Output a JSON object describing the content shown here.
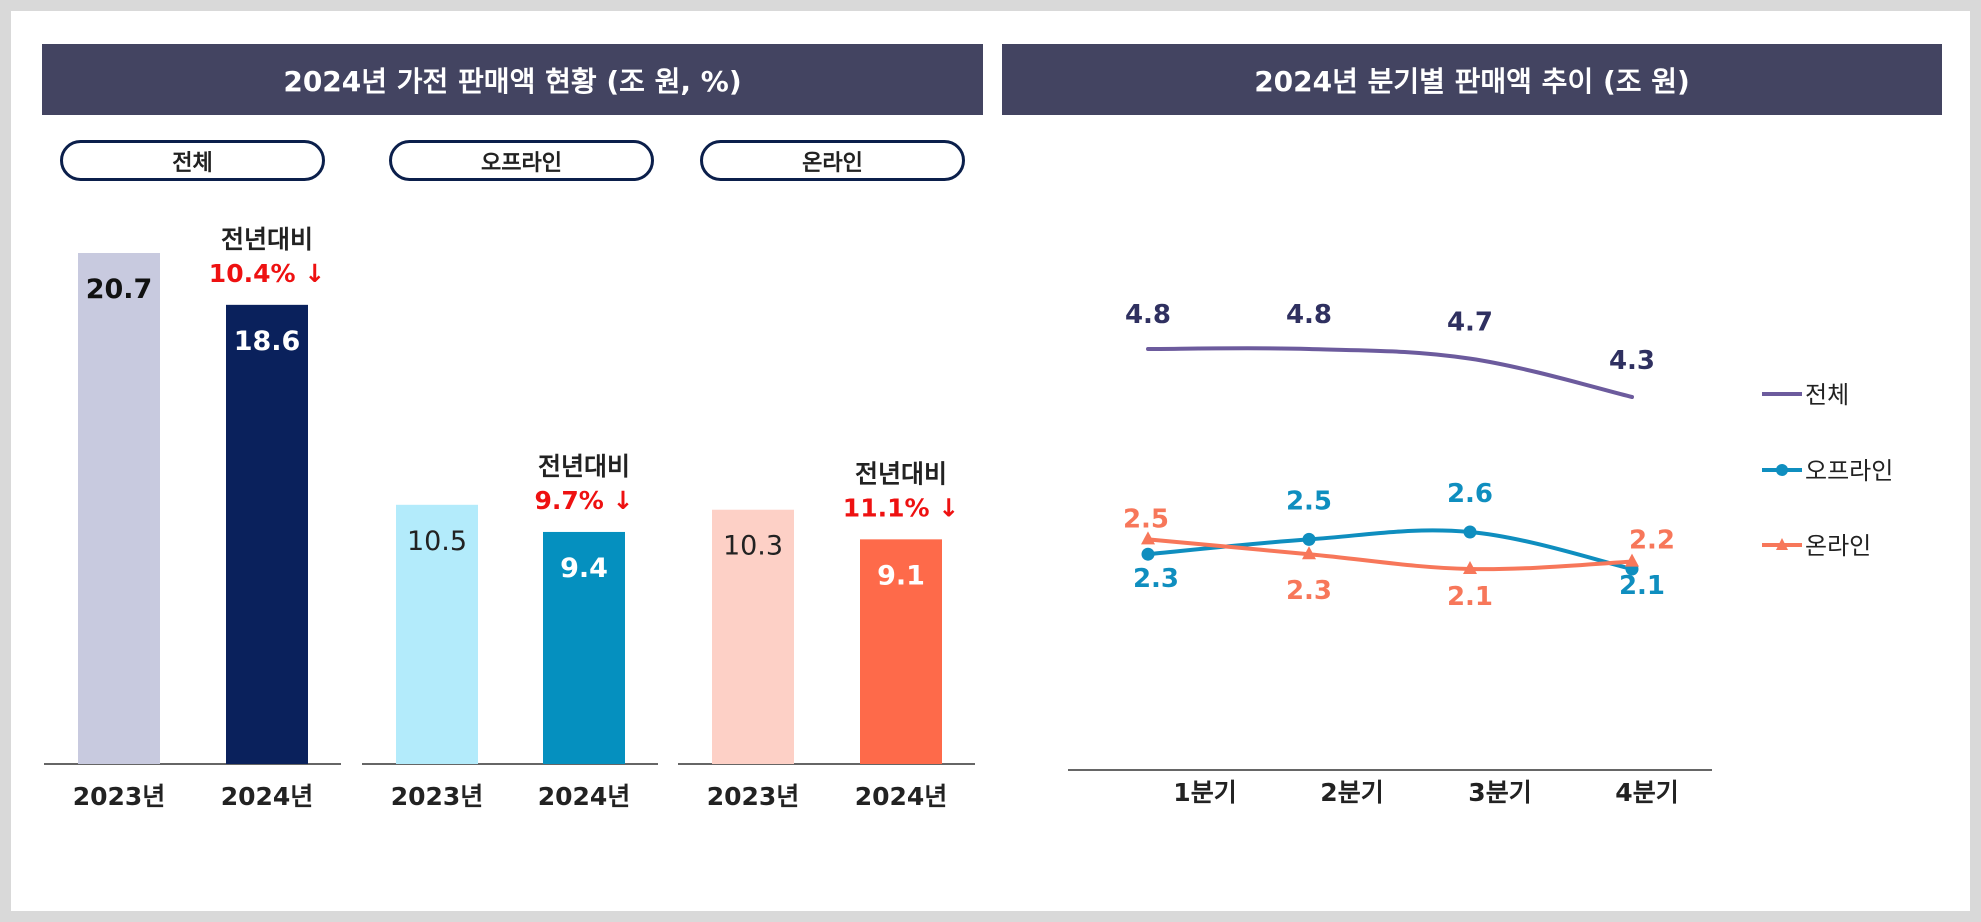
{
  "left_panel": {
    "title": "2024년 가전 판매액 현황 (조 원, %)",
    "groups": [
      {
        "label": "전체"
      },
      {
        "label": "오프라인"
      },
      {
        "label": "온라인"
      }
    ]
  },
  "right_panel": {
    "title": "2024년 분기별 판매액 추이 (조 원)"
  },
  "colors": {
    "header_bg": "#434461",
    "total_2023": "#c8cadf",
    "total_2024": "#0a215c",
    "offline_2023": "#b3ebfb",
    "offline_2024": "#0590bf",
    "online_2023": "#fdd0c6",
    "online_2024": "#fe6a4a",
    "decrease": "#ee1111",
    "line_total": "#6c5b9d",
    "line_offline": "#0f8ebf",
    "line_online": "#f7775a",
    "label_total": "#2f3060"
  },
  "chart_data": [
    {
      "type": "bar",
      "title": "2024년 가전 판매액 현황 (조 원, %)",
      "ylim": [
        0,
        20.7
      ],
      "groups": [
        {
          "name": "전체",
          "categories": [
            "2023년",
            "2024년"
          ],
          "values": [
            20.7,
            18.6
          ],
          "value_labels": [
            "20.7",
            "18.6"
          ],
          "change_label": "전년대비",
          "change_value": "10.4%",
          "change_arrow": "↓"
        },
        {
          "name": "오프라인",
          "categories": [
            "2023년",
            "2024년"
          ],
          "values": [
            10.5,
            9.4
          ],
          "value_labels": [
            "10.5",
            "9.4"
          ],
          "change_label": "전년대비",
          "change_value": "9.7%",
          "change_arrow": "↓"
        },
        {
          "name": "온라인",
          "categories": [
            "2023년",
            "2024년"
          ],
          "values": [
            10.3,
            9.1
          ],
          "value_labels": [
            "10.3",
            "9.1"
          ],
          "change_label": "전년대비",
          "change_value": "11.1%",
          "change_arrow": "↓"
        }
      ]
    },
    {
      "type": "line",
      "title": "2024년 분기별 판매액 추이 (조 원)",
      "categories": [
        "1분기",
        "2분기",
        "3분기",
        "4분기"
      ],
      "legend_position": "right",
      "series": [
        {
          "name": "전체",
          "values": [
            4.8,
            4.8,
            4.7,
            4.3
          ],
          "labels": [
            "4.8",
            "4.8",
            "4.7",
            "4.3"
          ],
          "marker": "none"
        },
        {
          "name": "오프라인",
          "values": [
            2.3,
            2.5,
            2.6,
            2.1
          ],
          "labels": [
            "2.3",
            "2.5",
            "2.6",
            "2.1"
          ],
          "marker": "circle"
        },
        {
          "name": "온라인",
          "values": [
            2.5,
            2.3,
            2.1,
            2.2
          ],
          "labels": [
            "2.5",
            "2.3",
            "2.1",
            "2.2"
          ],
          "marker": "triangle"
        }
      ]
    }
  ]
}
